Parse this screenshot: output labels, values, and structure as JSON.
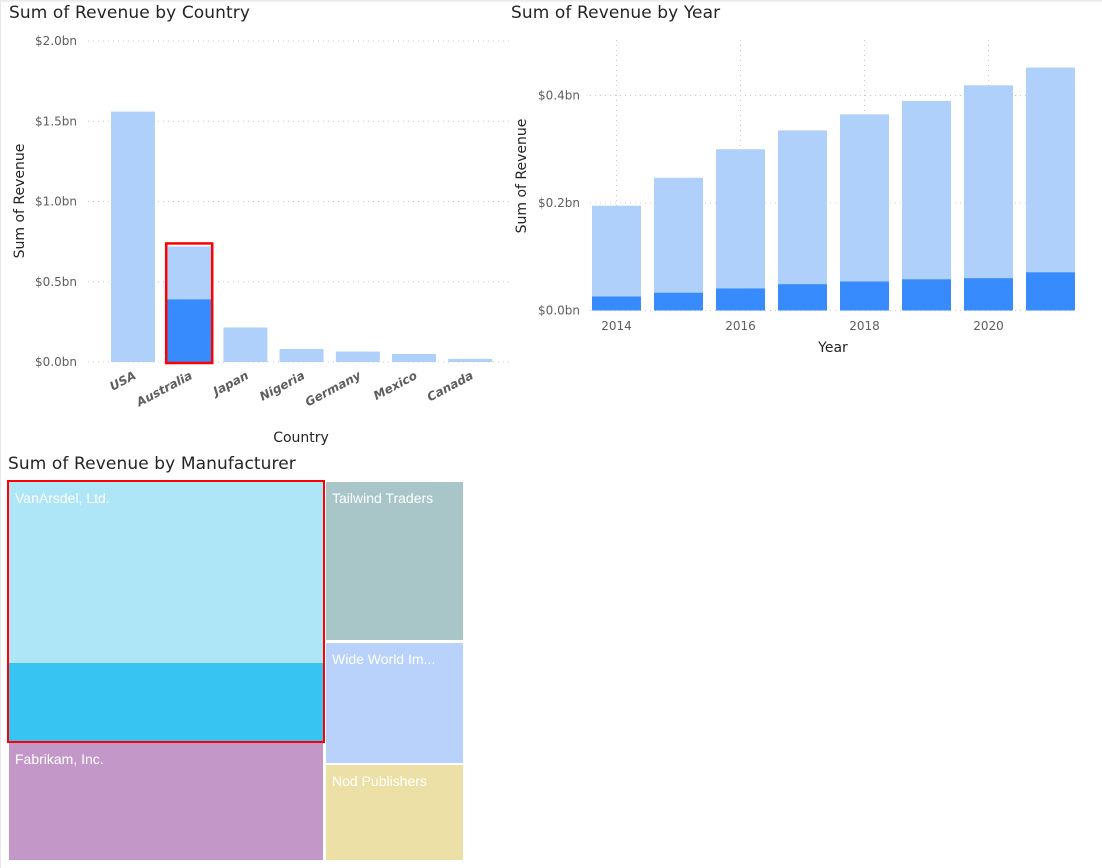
{
  "colors": {
    "base": "#aed0fb",
    "highlight": "#378bfd",
    "selection_border": "#ff0000",
    "grid": "#c8c8c8"
  },
  "chart_data": [
    {
      "id": "country",
      "type": "bar",
      "title": "Sum of Revenue by Country",
      "xlabel": "Country",
      "ylabel": "Sum of Revenue",
      "ylim": [
        0,
        2.0
      ],
      "yticks": [
        0,
        0.5,
        1.0,
        1.5,
        2.0
      ],
      "ytick_labels": [
        "$0.0bn",
        "$0.5bn",
        "$1.0bn",
        "$1.5bn",
        "$2.0bn"
      ],
      "grid": true,
      "categories": [
        "USA",
        "Australia",
        "Japan",
        "Nigeria",
        "Germany",
        "Mexico",
        "Canada"
      ],
      "series": [
        {
          "name": "Sum of Revenue",
          "values": [
            1.56,
            0.72,
            0.215,
            0.081,
            0.065,
            0.05,
            0.019
          ]
        },
        {
          "name": "Highlighted",
          "values": [
            0,
            0.39,
            0,
            0,
            0,
            0,
            0
          ]
        }
      ],
      "selected_category": "Australia",
      "units": "$bn"
    },
    {
      "id": "year",
      "type": "bar",
      "title": "Sum of Revenue by Year",
      "xlabel": "Year",
      "ylabel": "Sum of Revenue",
      "ylim": [
        0,
        0.5
      ],
      "yticks": [
        0,
        0.2,
        0.4
      ],
      "ytick_labels": [
        "$0.0bn",
        "$0.2bn",
        "$0.4bn"
      ],
      "grid": true,
      "categories": [
        "2014",
        "2015",
        "2016",
        "2017",
        "2018",
        "2019",
        "2020",
        "2021"
      ],
      "xtick_labels": [
        "2014",
        "",
        "2016",
        "",
        "2018",
        "",
        "2020",
        ""
      ],
      "series": [
        {
          "name": "Sum of Revenue",
          "values": [
            0.195,
            0.247,
            0.3,
            0.335,
            0.365,
            0.39,
            0.419,
            0.452
          ]
        },
        {
          "name": "Highlighted",
          "values": [
            0.026,
            0.033,
            0.041,
            0.049,
            0.054,
            0.058,
            0.06,
            0.071
          ]
        }
      ],
      "units": "$bn"
    },
    {
      "id": "manufacturer",
      "type": "treemap",
      "title": "Sum of Revenue by Manufacturer",
      "items": [
        {
          "label": "VanArsdel, Ltd.",
          "value": 0.81,
          "highlight_fraction": 0.3,
          "color": "#aee6f8",
          "highlight_color": "#38c4f2",
          "selected": true
        },
        {
          "label": "Fabrikam, Inc.",
          "value": 0.37,
          "color": "#c397c7"
        },
        {
          "label": "Tailwind Traders",
          "value": 0.22,
          "color": "#a8c6c7"
        },
        {
          "label": "Wide World Im...",
          "value": 0.165,
          "color": "#b8d2fb"
        },
        {
          "label": "Nod Publishers",
          "value": 0.13,
          "color": "#ede0a6"
        }
      ]
    }
  ]
}
